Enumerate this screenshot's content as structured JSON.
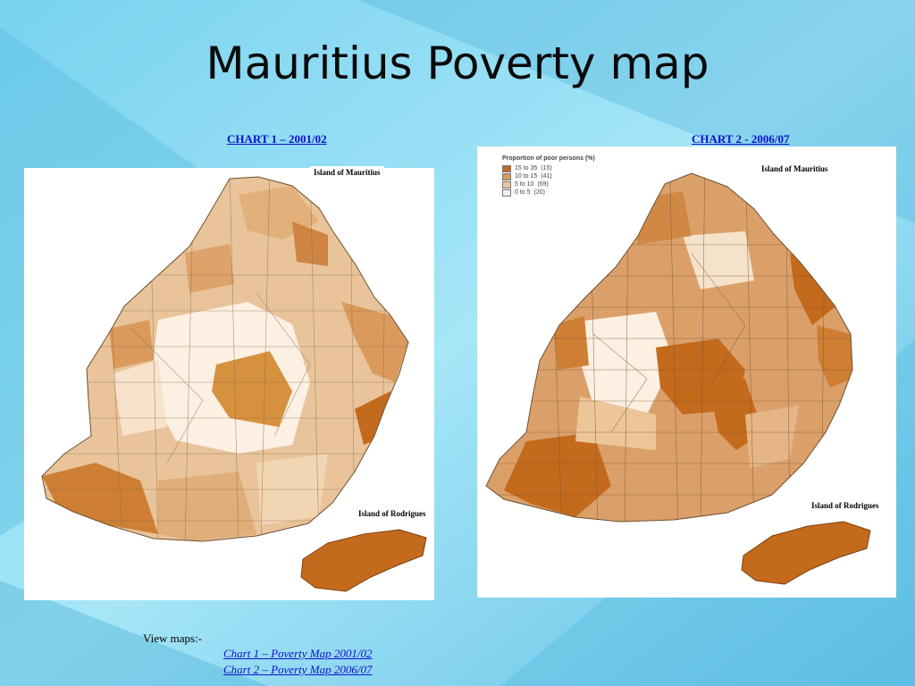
{
  "slide": {
    "title": "Mauritius Poverty map",
    "view_maps_label": "View maps:-"
  },
  "chart1": {
    "heading": "CHART 1 – 2001/02",
    "label_mauritius": "Island of Mauritius",
    "label_rodrigues": "Island of Rodrigues"
  },
  "chart2": {
    "heading": "CHART 2 - 2006/07",
    "label_mauritius": "Island of Mauritius",
    "label_rodrigues": "Island of Rodrigues",
    "legend": {
      "title": "Proportion of poor persons (%)",
      "items": [
        {
          "range": "15 to 35",
          "count": "(15)",
          "color": "#c46a1c"
        },
        {
          "range": "10 to 15",
          "count": "(41)",
          "color": "#d99a5b"
        },
        {
          "range": "5 to 10",
          "count": "(69)",
          "color": "#ecc699"
        },
        {
          "range": "0 to 5",
          "count": "(20)",
          "color": "#fbf0e2"
        }
      ]
    }
  },
  "links": [
    {
      "label": "Chart 1 – Poverty Map 2001/02"
    },
    {
      "label": "Chart 2 – Poverty Map 2006/07"
    }
  ],
  "colors": {
    "bg_light": "#9ee3f5",
    "bg_dark": "#4fb3d8",
    "link": "#1010d0",
    "very_high": "#c46a1c",
    "high": "#d99a5b",
    "mid": "#ecc699",
    "low": "#fbf0e2"
  }
}
